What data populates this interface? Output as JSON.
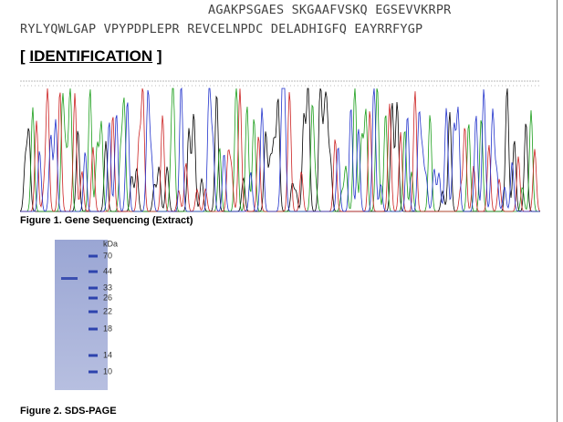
{
  "sequence": {
    "lines": [
      "AGAKPSGAES SKGAAFVSKQ EGSEVVKRPR",
      "RYLYQWLGAP VPYPDPLEPR REVCELNPDC DELADHIGFQ EAYRRFYGP"
    ]
  },
  "heading": {
    "open": "[",
    "word": "IDENTIFICATION",
    "close": "]"
  },
  "figures": [
    {
      "caption": "Figure 1. Gene Sequencing (Extract)"
    },
    {
      "caption": "Figure 2. SDS-PAGE",
      "unit": "kDa",
      "markers": [
        "70",
        "44",
        "33",
        "26",
        "22",
        "18",
        "14",
        "10"
      ]
    }
  ]
}
